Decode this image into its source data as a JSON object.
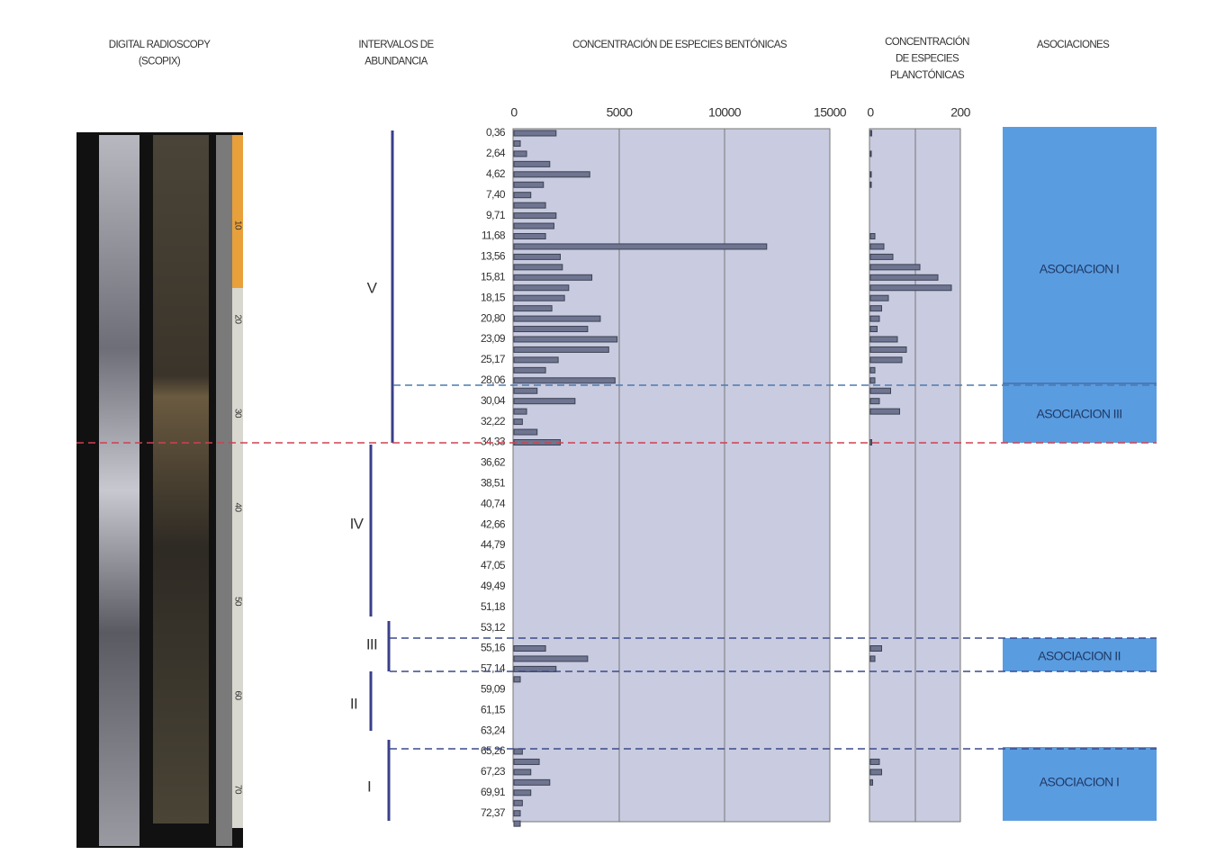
{
  "headers": {
    "radioscopy": [
      "DIGITAL RADIOSCOPY",
      "(SCOPIX)"
    ],
    "intervals": [
      "INTERVALOS DE",
      "ABUNDANCIA"
    ],
    "benthic": [
      "CONCENTRACIÓN DE ESPECIES BENTÓNICAS"
    ],
    "planktonic": [
      "CONCENTRACIÓN",
      "DE ESPECIES",
      "PLANCTÓNICAS"
    ],
    "associations": [
      "ASOCIACIONES"
    ]
  },
  "core_scale": [
    "10",
    "20",
    "30",
    "40",
    "50",
    "60",
    "70"
  ],
  "intervals": [
    "V",
    "IV",
    "III",
    "II",
    "I"
  ],
  "associations": [
    "ASOCIACION I",
    "ASOCIACION III",
    "ASOCIACION II",
    "ASOCIACION I"
  ],
  "chart_data": [
    {
      "type": "hbar",
      "color": "#3b4252",
      "xlim": [
        0,
        15000
      ],
      "xticks": [
        0,
        5000,
        10000,
        15000
      ],
      "grid": true,
      "categories": [
        "0,36",
        null,
        "2,64",
        null,
        "4,62",
        null,
        "7,40",
        null,
        "9,71",
        null,
        "11,68",
        null,
        "13,56",
        null,
        "15,81",
        null,
        "18,15",
        null,
        "20,80",
        null,
        "23,09",
        null,
        "25,17",
        null,
        "28,06",
        null,
        "30,04",
        null,
        "32,22",
        null,
        "34,33",
        null,
        "36,62",
        null,
        "38,51",
        null,
        "40,74",
        null,
        "42,66",
        null,
        "44,79",
        null,
        "47,05",
        null,
        "49,49",
        null,
        "51,18",
        null,
        "53,12",
        null,
        "55,16",
        null,
        "57,14",
        null,
        "59,09",
        null,
        "61,15",
        null,
        "63,24",
        null,
        "65,26",
        null,
        "67,23",
        null,
        "69,91",
        null,
        "72,37",
        null
      ],
      "values": [
        2000,
        300,
        600,
        1700,
        3600,
        1400,
        800,
        1500,
        2000,
        1900,
        1500,
        12000,
        2200,
        2300,
        3700,
        2600,
        2400,
        1800,
        4100,
        3500,
        4900,
        4500,
        2100,
        1500,
        4800,
        1100,
        2900,
        600,
        400,
        1100,
        2200,
        0,
        0,
        0,
        0,
        0,
        0,
        0,
        0,
        0,
        0,
        0,
        0,
        0,
        0,
        0,
        0,
        0,
        0,
        0,
        1500,
        3500,
        2000,
        300,
        0,
        0,
        0,
        0,
        0,
        0,
        400,
        1200,
        800,
        1700,
        800,
        400,
        300,
        300
      ]
    },
    {
      "type": "hbar",
      "color": "#3b4252",
      "xlim": [
        0,
        200
      ],
      "xticks": [
        0,
        200
      ],
      "gridlines": [
        100
      ],
      "values": [
        3,
        0,
        2,
        0,
        2,
        2,
        0,
        0,
        0,
        0,
        10,
        30,
        50,
        110,
        150,
        180,
        40,
        25,
        20,
        15,
        60,
        80,
        70,
        10,
        10,
        45,
        20,
        65,
        0,
        0,
        3,
        0,
        0,
        0,
        0,
        0,
        0,
        0,
        0,
        0,
        0,
        0,
        0,
        0,
        0,
        0,
        0,
        0,
        0,
        0,
        25,
        10,
        0,
        0,
        0,
        0,
        0,
        0,
        0,
        0,
        0,
        20,
        25,
        5,
        0,
        0,
        0,
        0
      ]
    }
  ]
}
